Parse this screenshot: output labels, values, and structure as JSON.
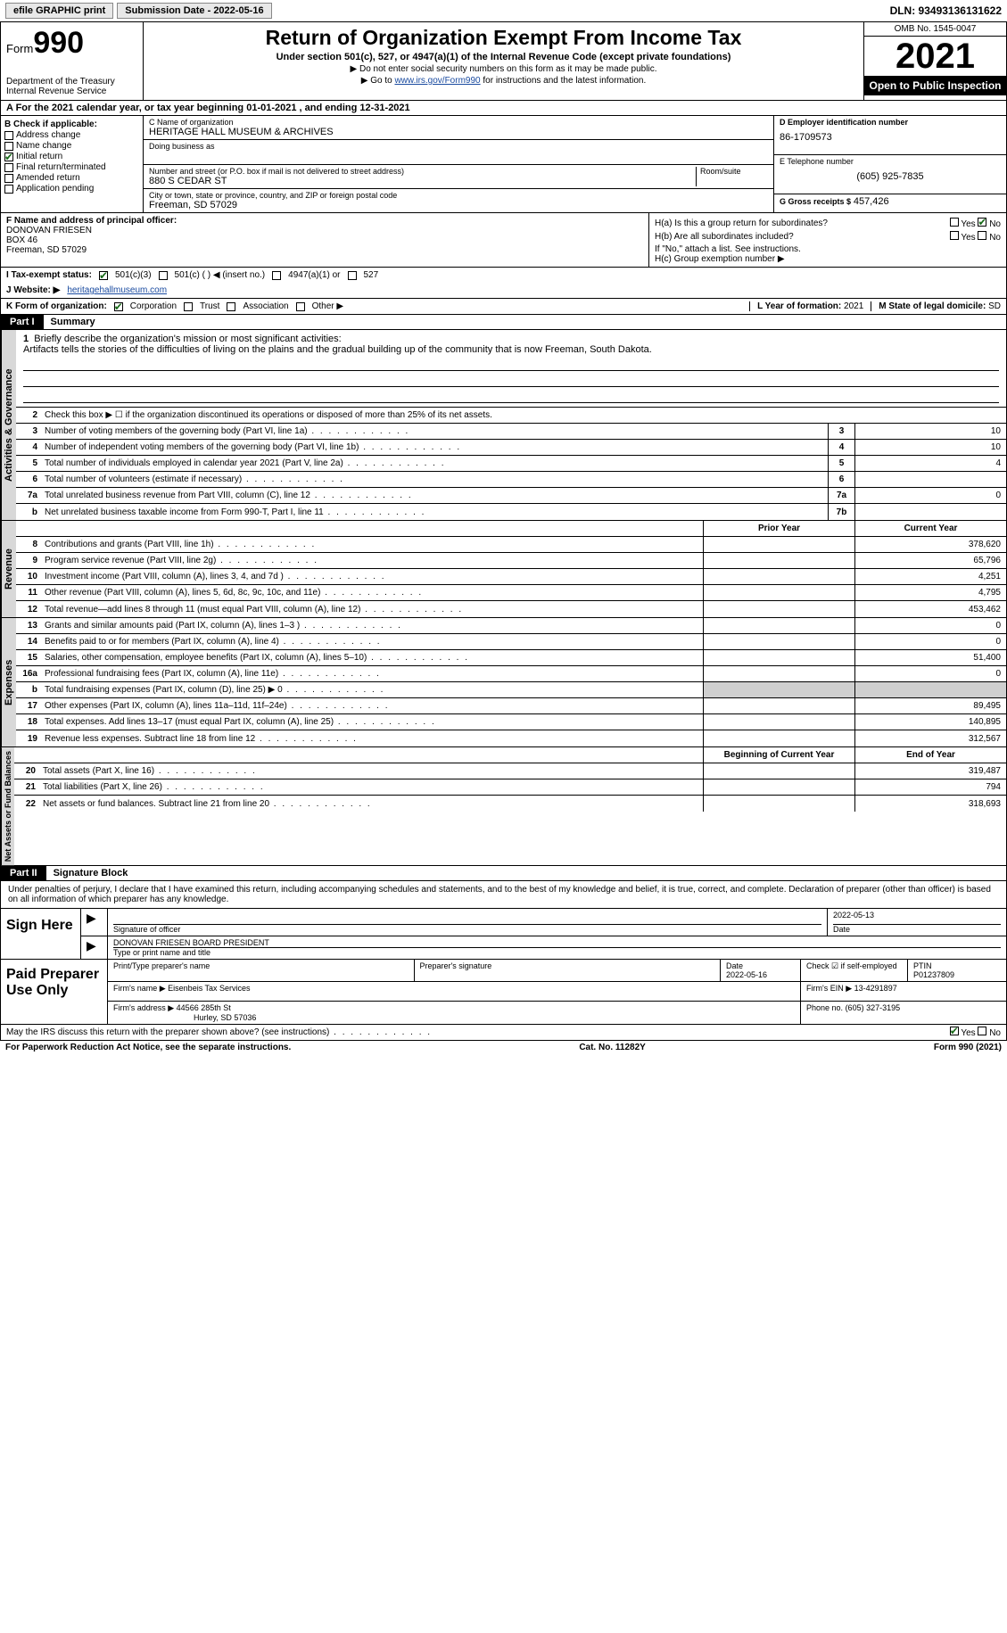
{
  "topbar": {
    "efile": "efile GRAPHIC print",
    "submission_label": "Submission Date - 2022-05-16",
    "dln": "DLN: 93493136131622"
  },
  "header": {
    "form_word": "Form",
    "form_num": "990",
    "dept": "Department of the Treasury",
    "irs": "Internal Revenue Service",
    "title": "Return of Organization Exempt From Income Tax",
    "subtitle": "Under section 501(c), 527, or 4947(a)(1) of the Internal Revenue Code (except private foundations)",
    "note1": "▶ Do not enter social security numbers on this form as it may be made public.",
    "note2_pre": "▶ Go to ",
    "note2_link": "www.irs.gov/Form990",
    "note2_post": " for instructions and the latest information.",
    "omb": "OMB No. 1545-0047",
    "year": "2021",
    "inspect": "Open to Public Inspection"
  },
  "rowA": {
    "text_pre": "A For the 2021 calendar year, or tax year beginning ",
    "begin": "01-01-2021",
    "mid": " , and ending ",
    "end": "12-31-2021"
  },
  "colB": {
    "title": "B Check if applicable:",
    "items": [
      {
        "label": "Address change",
        "checked": false
      },
      {
        "label": "Name change",
        "checked": false
      },
      {
        "label": "Initial return",
        "checked": true
      },
      {
        "label": "Final return/terminated",
        "checked": false
      },
      {
        "label": "Amended return",
        "checked": false
      },
      {
        "label": "Application pending",
        "checked": false
      }
    ]
  },
  "colC": {
    "name_label": "C Name of organization",
    "name": "HERITAGE HALL MUSEUM & ARCHIVES",
    "dba_label": "Doing business as",
    "dba": "",
    "addr_label": "Number and street (or P.O. box if mail is not delivered to street address)",
    "room_label": "Room/suite",
    "addr": "880 S CEDAR ST",
    "city_label": "City or town, state or province, country, and ZIP or foreign postal code",
    "city": "Freeman, SD  57029"
  },
  "colD": {
    "ein_label": "D Employer identification number",
    "ein": "86-1709573",
    "phone_label": "E Telephone number",
    "phone": "(605) 925-7835",
    "gross_label": "G Gross receipts $",
    "gross": "457,426"
  },
  "fg": {
    "f_label": "F Name and address of principal officer:",
    "f_name": "DONOVAN FRIESEN",
    "f_addr1": "BOX 46",
    "f_addr2": "Freeman, SD  57029",
    "ha_label": "H(a)  Is this a group return for subordinates?",
    "hb_label": "H(b)  Are all subordinates included?",
    "hb_note": "If \"No,\" attach a list. See instructions.",
    "hc_label": "H(c)  Group exemption number ▶",
    "yes": "Yes",
    "no": "No"
  },
  "rowI": {
    "label": "I  Tax-exempt status:",
    "opt1": "501(c)(3)",
    "opt2": "501(c) (  ) ◀ (insert no.)",
    "opt3": "4947(a)(1) or",
    "opt4": "527"
  },
  "rowJ": {
    "label": "J  Website: ▶",
    "value": "heritagehallmuseum.com"
  },
  "rowK": {
    "label": "K Form of organization:",
    "corp": "Corporation",
    "trust": "Trust",
    "assoc": "Association",
    "other": "Other ▶",
    "l_label": "L Year of formation:",
    "l_val": "2021",
    "m_label": "M State of legal domicile:",
    "m_val": "SD"
  },
  "part1": {
    "label": "Part I",
    "title": "Summary",
    "line1_label": "Briefly describe the organization's mission or most significant activities:",
    "line1_text": "Artifacts tells the stories of the difficulties of living on the plains and the gradual building up of the community that is now Freeman, South Dakota.",
    "line2": "Check this box ▶ ☐ if the organization discontinued its operations or disposed of more than 25% of its net assets.",
    "vtab_ag": "Activities & Governance",
    "vtab_rev": "Revenue",
    "vtab_exp": "Expenses",
    "vtab_na": "Net Assets or Fund Balances",
    "lines_ag": [
      {
        "n": "3",
        "d": "Number of voting members of the governing body (Part VI, line 1a)",
        "box": "3",
        "cy": "10"
      },
      {
        "n": "4",
        "d": "Number of independent voting members of the governing body (Part VI, line 1b)",
        "box": "4",
        "cy": "10"
      },
      {
        "n": "5",
        "d": "Total number of individuals employed in calendar year 2021 (Part V, line 2a)",
        "box": "5",
        "cy": "4"
      },
      {
        "n": "6",
        "d": "Total number of volunteers (estimate if necessary)",
        "box": "6",
        "cy": ""
      },
      {
        "n": "7a",
        "d": "Total unrelated business revenue from Part VIII, column (C), line 12",
        "box": "7a",
        "cy": "0"
      },
      {
        "n": "b",
        "d": "Net unrelated business taxable income from Form 990-T, Part I, line 11",
        "box": "7b",
        "cy": ""
      }
    ],
    "hdr_py": "Prior Year",
    "hdr_cy": "Current Year",
    "lines_rev": [
      {
        "n": "8",
        "d": "Contributions and grants (Part VIII, line 1h)",
        "py": "",
        "cy": "378,620"
      },
      {
        "n": "9",
        "d": "Program service revenue (Part VIII, line 2g)",
        "py": "",
        "cy": "65,796"
      },
      {
        "n": "10",
        "d": "Investment income (Part VIII, column (A), lines 3, 4, and 7d )",
        "py": "",
        "cy": "4,251"
      },
      {
        "n": "11",
        "d": "Other revenue (Part VIII, column (A), lines 5, 6d, 8c, 9c, 10c, and 11e)",
        "py": "",
        "cy": "4,795"
      },
      {
        "n": "12",
        "d": "Total revenue—add lines 8 through 11 (must equal Part VIII, column (A), line 12)",
        "py": "",
        "cy": "453,462"
      }
    ],
    "lines_exp": [
      {
        "n": "13",
        "d": "Grants and similar amounts paid (Part IX, column (A), lines 1–3 )",
        "py": "",
        "cy": "0"
      },
      {
        "n": "14",
        "d": "Benefits paid to or for members (Part IX, column (A), line 4)",
        "py": "",
        "cy": "0"
      },
      {
        "n": "15",
        "d": "Salaries, other compensation, employee benefits (Part IX, column (A), lines 5–10)",
        "py": "",
        "cy": "51,400"
      },
      {
        "n": "16a",
        "d": "Professional fundraising fees (Part IX, column (A), line 11e)",
        "py": "",
        "cy": "0"
      },
      {
        "n": "b",
        "d": "Total fundraising expenses (Part IX, column (D), line 25) ▶ 0",
        "py": "grey",
        "cy": "grey"
      },
      {
        "n": "17",
        "d": "Other expenses (Part IX, column (A), lines 11a–11d, 11f–24e)",
        "py": "",
        "cy": "89,495"
      },
      {
        "n": "18",
        "d": "Total expenses. Add lines 13–17 (must equal Part IX, column (A), line 25)",
        "py": "",
        "cy": "140,895"
      },
      {
        "n": "19",
        "d": "Revenue less expenses. Subtract line 18 from line 12",
        "py": "",
        "cy": "312,567"
      }
    ],
    "hdr_bcy": "Beginning of Current Year",
    "hdr_eoy": "End of Year",
    "lines_na": [
      {
        "n": "20",
        "d": "Total assets (Part X, line 16)",
        "py": "",
        "cy": "319,487"
      },
      {
        "n": "21",
        "d": "Total liabilities (Part X, line 26)",
        "py": "",
        "cy": "794"
      },
      {
        "n": "22",
        "d": "Net assets or fund balances. Subtract line 21 from line 20",
        "py": "",
        "cy": "318,693"
      }
    ]
  },
  "part2": {
    "label": "Part II",
    "title": "Signature Block",
    "decl": "Under penalties of perjury, I declare that I have examined this return, including accompanying schedules and statements, and to the best of my knowledge and belief, it is true, correct, and complete. Declaration of preparer (other than officer) is based on all information of which preparer has any knowledge.",
    "sign_here": "Sign Here",
    "sig_officer": "Signature of officer",
    "sig_date": "2022-05-13",
    "date_label": "Date",
    "typed_name": "DONOVAN FRIESEN BOARD PRESIDENT",
    "typed_label": "Type or print name and title",
    "paid_prep": "Paid Preparer Use Only",
    "prep_name_label": "Print/Type preparer's name",
    "prep_name": "",
    "prep_sig_label": "Preparer's signature",
    "prep_date_label": "Date",
    "prep_date": "2022-05-16",
    "check_self": "Check ☑ if self-employed",
    "ptin_label": "PTIN",
    "ptin": "P01237809",
    "firm_name_label": "Firm's name     ▶",
    "firm_name": "Eisenbeis Tax Services",
    "firm_ein_label": "Firm's EIN ▶",
    "firm_ein": "13-4291897",
    "firm_addr_label": "Firm's address ▶",
    "firm_addr1": "44566 285th St",
    "firm_addr2": "Hurley, SD  57036",
    "firm_phone_label": "Phone no.",
    "firm_phone": "(605) 327-3195",
    "discuss": "May the IRS discuss this return with the preparer shown above? (see instructions)",
    "yes": "Yes",
    "no": "No"
  },
  "footer": {
    "pra": "For Paperwork Reduction Act Notice, see the separate instructions.",
    "cat": "Cat. No. 11282Y",
    "form": "Form 990 (2021)"
  }
}
